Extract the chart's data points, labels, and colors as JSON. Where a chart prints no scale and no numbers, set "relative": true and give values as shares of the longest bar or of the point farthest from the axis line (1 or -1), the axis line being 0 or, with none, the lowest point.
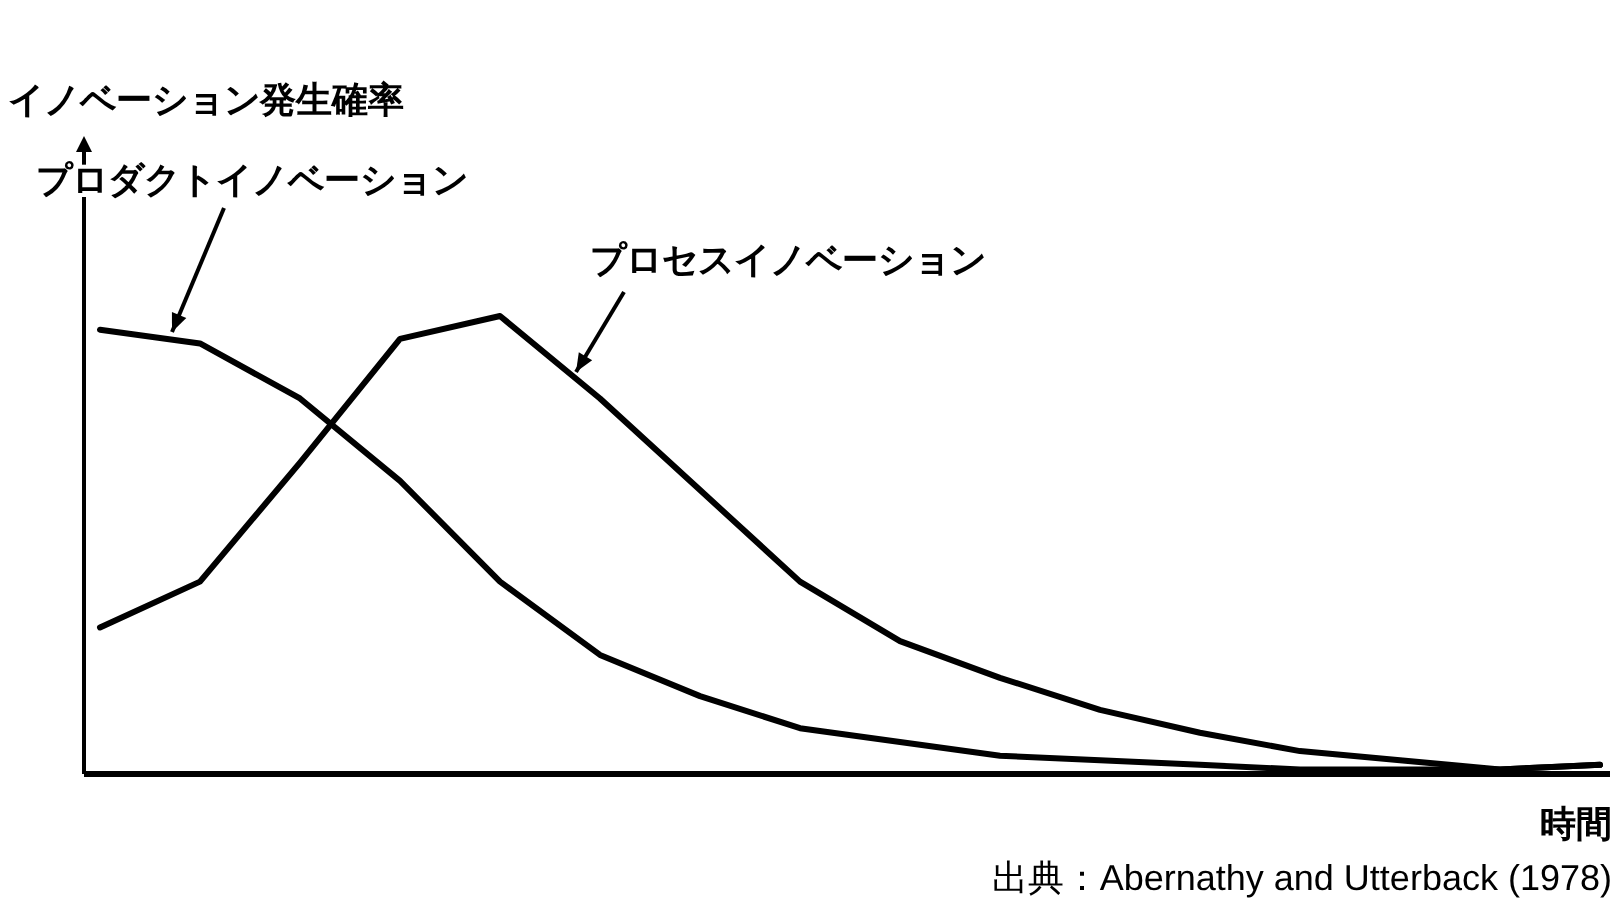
{
  "chart_data": {
    "type": "line",
    "relative": true,
    "xlabel": "時間",
    "annotations": [
      "イノベーション発生確率",
      "出典：Abernathy and Utterback (1978)"
    ],
    "categories": [
      null,
      null,
      null,
      null,
      null,
      null,
      null,
      null,
      null,
      null,
      null,
      null,
      null,
      null,
      null,
      null
    ],
    "marker": "none",
    "line_style": "solid",
    "series": [
      {
        "name": "プロダクトイノベーション",
        "color": "#000000",
        "values": [
          0.97,
          0.94,
          0.82,
          0.64,
          0.42,
          0.26,
          0.17,
          0.1,
          0.07,
          0.04,
          0.03,
          0.02,
          0.01,
          0.01,
          0.01,
          0.02
        ]
      },
      {
        "name": "プロセスイノベーション",
        "color": "#000000",
        "values": [
          0.32,
          0.42,
          0.68,
          0.95,
          1.0,
          0.82,
          0.62,
          0.42,
          0.29,
          0.21,
          0.14,
          0.09,
          0.05,
          0.03,
          0.01,
          0.02
        ]
      }
    ]
  }
}
